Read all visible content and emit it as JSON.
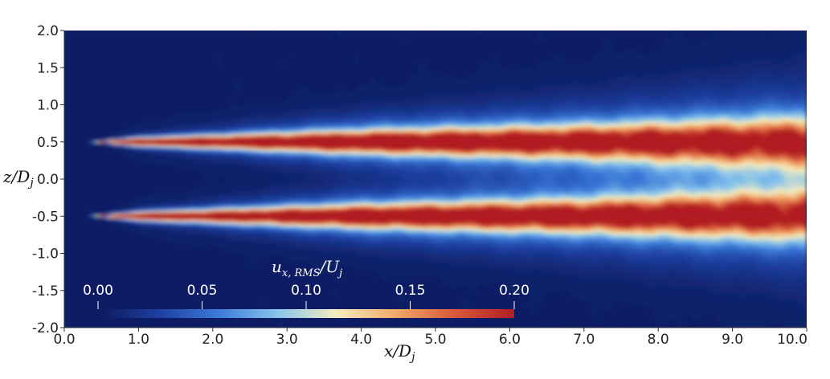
{
  "chart_data": {
    "type": "heatmap",
    "title": "",
    "xlabel": "x/D_j",
    "ylabel": "z/D_j",
    "xlim": [
      0.0,
      10.0
    ],
    "ylim": [
      -2.0,
      2.0
    ],
    "x_ticks": [
      "0.0",
      "1.0",
      "2.0",
      "3.0",
      "4.0",
      "5.0",
      "6.0",
      "7.0",
      "8.0",
      "9.0",
      "10.0"
    ],
    "y_ticks": [
      "2.0",
      "1.5",
      "1.0",
      "0.5",
      "0.0",
      "-0.5",
      "-1.0",
      "-1.5",
      "-2.0"
    ],
    "field": {
      "name": "u_x,RMS/U_j",
      "shear_layer_centers_z": [
        0.5,
        -0.5
      ],
      "nozzle_lip_x": 0.35,
      "layer_half_width": [
        [
          0.35,
          0.0
        ],
        [
          1.0,
          0.06
        ],
        [
          3.0,
          0.12
        ],
        [
          5.0,
          0.17
        ],
        [
          7.0,
          0.22
        ],
        [
          9.0,
          0.29
        ],
        [
          10.0,
          0.33
        ]
      ],
      "peak_value": [
        [
          0.35,
          0.18
        ],
        [
          1.0,
          0.2
        ],
        [
          3.0,
          0.19
        ],
        [
          5.0,
          0.18
        ],
        [
          7.0,
          0.17
        ],
        [
          9.0,
          0.16
        ],
        [
          10.0,
          0.15
        ]
      ]
    },
    "colorbar": {
      "title": "u_x,RMS/U_j",
      "title_main": "u",
      "title_sub": "x, RMS",
      "title_rest": "/U",
      "title_sub2": "j",
      "range": [
        0.0,
        0.2
      ],
      "ticks": [
        "0.00",
        "0.05",
        "0.10",
        "0.15",
        "0.20"
      ],
      "colormap": [
        "#0c1a5c",
        "#1d3e9e",
        "#3a78d8",
        "#86c3ec",
        "#f4edc0",
        "#f1a96a",
        "#d8583a",
        "#b01e22"
      ],
      "placement": "inside-bottom-left"
    },
    "background_color": "#0b2160"
  },
  "axis_labels": {
    "x_main": "x/D",
    "x_sub": "j",
    "y_main": "z/D",
    "y_sub": "j"
  }
}
